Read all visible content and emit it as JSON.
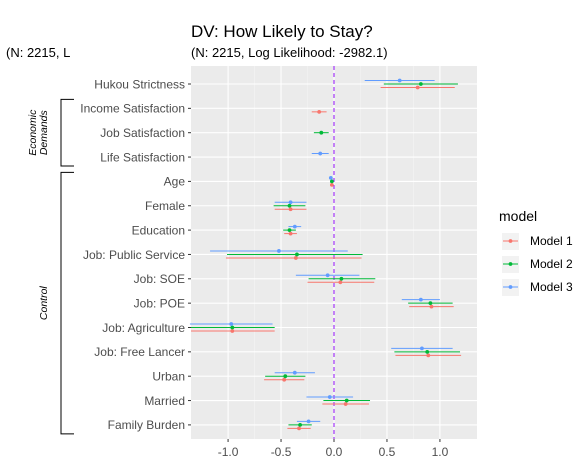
{
  "chart_data": {
    "type": "scatter",
    "title": "DV: How Likely to Stay?",
    "subtitle": "(N: 2215, Log Likelihood: -2982.1)",
    "clipped_subtitle": "(N: 2215, L",
    "xlim": [
      -1.35,
      1.35
    ],
    "xticks": [
      -1.0,
      -0.5,
      0.0,
      0.5,
      1.0
    ],
    "xtick_labels": [
      "-1.0",
      "-0.5",
      "0.0",
      "0.5",
      "1.0"
    ],
    "vline": 0,
    "grid": true,
    "legend": {
      "title": "model",
      "position": "right"
    },
    "categories": [
      "Hukou Strictness",
      "Income Satisfaction",
      "Job Satisfaction",
      "Life Satisfaction",
      "Age",
      "Female",
      "Education",
      "Job: Public Service",
      "Job: SOE",
      "Job: POE",
      "Job: Agriculture",
      "Job: Free Lancer",
      "Urban",
      "Married",
      "Family Burden"
    ],
    "groups": [
      {
        "label": "Economic\nDemands",
        "lines": [
          "Economic",
          "Demands"
        ],
        "from": 1,
        "to": 3
      },
      {
        "label": "Control",
        "lines": [
          "Control"
        ],
        "from": 4,
        "to": 14
      }
    ],
    "series": [
      {
        "name": "Model 1",
        "color": "#F8766D",
        "points": [
          {
            "cat": 0,
            "est": 0.79,
            "lo": 0.44,
            "hi": 1.14
          },
          {
            "cat": 1,
            "est": -0.14,
            "lo": -0.21,
            "hi": -0.07
          },
          {
            "cat": 4,
            "est": -0.02,
            "lo": -0.03,
            "hi": -0.01
          },
          {
            "cat": 5,
            "est": -0.41,
            "lo": -0.56,
            "hi": -0.26
          },
          {
            "cat": 6,
            "est": -0.41,
            "lo": -0.47,
            "hi": -0.35
          },
          {
            "cat": 7,
            "est": -0.36,
            "lo": -1.02,
            "hi": 0.26
          },
          {
            "cat": 8,
            "est": 0.06,
            "lo": -0.25,
            "hi": 0.38
          },
          {
            "cat": 9,
            "est": 0.92,
            "lo": 0.71,
            "hi": 1.13
          },
          {
            "cat": 10,
            "est": -0.96,
            "lo": -1.35,
            "hi": -0.56
          },
          {
            "cat": 11,
            "est": 0.89,
            "lo": 0.58,
            "hi": 1.2
          },
          {
            "cat": 12,
            "est": -0.47,
            "lo": -0.66,
            "hi": -0.28
          },
          {
            "cat": 13,
            "est": 0.11,
            "lo": -0.11,
            "hi": 0.33
          },
          {
            "cat": 14,
            "est": -0.33,
            "lo": -0.44,
            "hi": -0.22
          }
        ]
      },
      {
        "name": "Model 2",
        "color": "#00BA38",
        "points": [
          {
            "cat": 0,
            "est": 0.82,
            "lo": 0.47,
            "hi": 1.17
          },
          {
            "cat": 2,
            "est": -0.12,
            "lo": -0.19,
            "hi": -0.05
          },
          {
            "cat": 4,
            "est": -0.02,
            "lo": -0.03,
            "hi": -0.01
          },
          {
            "cat": 5,
            "est": -0.42,
            "lo": -0.57,
            "hi": -0.27
          },
          {
            "cat": 6,
            "est": -0.42,
            "lo": -0.48,
            "hi": -0.36
          },
          {
            "cat": 7,
            "est": -0.35,
            "lo": -1.01,
            "hi": 0.27
          },
          {
            "cat": 8,
            "est": 0.07,
            "lo": -0.24,
            "hi": 0.39
          },
          {
            "cat": 9,
            "est": 0.91,
            "lo": 0.7,
            "hi": 1.12
          },
          {
            "cat": 10,
            "est": -0.96,
            "lo": -1.35,
            "hi": -0.56
          },
          {
            "cat": 11,
            "est": 0.88,
            "lo": 0.57,
            "hi": 1.19
          },
          {
            "cat": 12,
            "est": -0.46,
            "lo": -0.65,
            "hi": -0.27
          },
          {
            "cat": 13,
            "est": 0.12,
            "lo": -0.1,
            "hi": 0.34
          },
          {
            "cat": 14,
            "est": -0.32,
            "lo": -0.43,
            "hi": -0.21
          }
        ]
      },
      {
        "name": "Model 3",
        "color": "#619CFF",
        "points": [
          {
            "cat": 0,
            "est": 0.62,
            "lo": 0.29,
            "hi": 0.95
          },
          {
            "cat": 3,
            "est": -0.13,
            "lo": -0.21,
            "hi": -0.05
          },
          {
            "cat": 4,
            "est": -0.03,
            "lo": -0.04,
            "hi": -0.02
          },
          {
            "cat": 5,
            "est": -0.41,
            "lo": -0.56,
            "hi": -0.26
          },
          {
            "cat": 6,
            "est": -0.37,
            "lo": -0.43,
            "hi": -0.31
          },
          {
            "cat": 7,
            "est": -0.52,
            "lo": -1.17,
            "hi": 0.13
          },
          {
            "cat": 8,
            "est": -0.06,
            "lo": -0.36,
            "hi": 0.24
          },
          {
            "cat": 9,
            "est": 0.82,
            "lo": 0.64,
            "hi": 1.0
          },
          {
            "cat": 10,
            "est": -0.97,
            "lo": -1.36,
            "hi": -0.58
          },
          {
            "cat": 11,
            "est": 0.83,
            "lo": 0.54,
            "hi": 1.12
          },
          {
            "cat": 12,
            "est": -0.37,
            "lo": -0.56,
            "hi": -0.18
          },
          {
            "cat": 13,
            "est": -0.04,
            "lo": -0.26,
            "hi": 0.18
          },
          {
            "cat": 14,
            "est": -0.24,
            "lo": -0.35,
            "hi": -0.13
          }
        ]
      }
    ]
  }
}
